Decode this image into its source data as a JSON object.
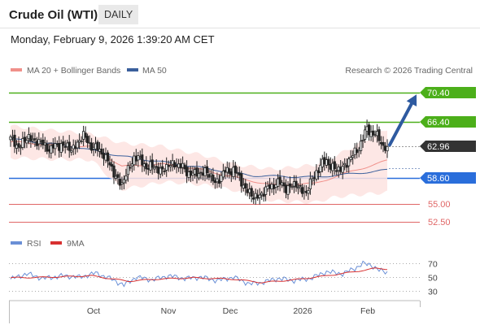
{
  "header": {
    "title": "Crude Oil (WTI)",
    "timeframe": "DAILY",
    "datetime": "Monday, February 9, 2026 1:39:20 AM CET"
  },
  "legend": {
    "ma20_label": "MA 20 + Bollinger Bands",
    "ma50_label": "MA 50",
    "credit": "Research © 2026 Trading Central",
    "ma20_color": "#f0908a",
    "ma50_color": "#3a5f9c",
    "band_fill": "#fde3e1"
  },
  "levels": [
    {
      "label": "70.40",
      "value": 70.4,
      "color": "#4caf1a",
      "style": "tag"
    },
    {
      "label": "66.40",
      "value": 66.4,
      "color": "#4caf1a",
      "style": "tag"
    },
    {
      "label": "62.96",
      "value": 62.96,
      "color": "#333333",
      "style": "tag-current"
    },
    {
      "label": "58.60",
      "value": 58.6,
      "color": "#2a6edb",
      "style": "tag"
    },
    {
      "label": "55.00",
      "value": 55.0,
      "color": "#e06666",
      "style": "text"
    },
    {
      "label": "52.50",
      "value": 52.5,
      "color": "#e06666",
      "style": "text"
    }
  ],
  "x_axis": {
    "ticks": [
      "Oct",
      "Nov",
      "Dec",
      "2026",
      "Feb"
    ]
  },
  "rsi_panel": {
    "rsi_label": "RSI",
    "ma9_label": "9MA",
    "rsi_color": "#6a8fd6",
    "ma9_color": "#d83030",
    "levels": [
      70,
      50,
      30
    ],
    "level_labels": [
      "70",
      "50",
      "30"
    ]
  },
  "chart_data": {
    "type": "candlestick",
    "title": "Crude Oil (WTI)",
    "timeframe": "DAILY",
    "ylim": [
      51.5,
      72.0
    ],
    "x_ticks": [
      "Oct",
      "Nov",
      "Dec",
      "2026",
      "Feb"
    ],
    "close_key": [
      {
        "t": 0,
        "v": 63.9
      },
      {
        "t": 4,
        "v": 63.0
      },
      {
        "t": 9,
        "v": 64.2
      },
      {
        "t": 15,
        "v": 63.4
      },
      {
        "t": 20,
        "v": 62.6
      },
      {
        "t": 25,
        "v": 63.3
      },
      {
        "t": 30,
        "v": 62.5
      },
      {
        "t": 36,
        "v": 64.4
      },
      {
        "t": 41,
        "v": 62.8
      },
      {
        "t": 46,
        "v": 62.0
      },
      {
        "t": 51,
        "v": 59.2
      },
      {
        "t": 55,
        "v": 57.7
      },
      {
        "t": 61,
        "v": 61.6
      },
      {
        "t": 67,
        "v": 60.3
      },
      {
        "t": 75,
        "v": 59.7
      },
      {
        "t": 81,
        "v": 60.7
      },
      {
        "t": 86,
        "v": 59.7
      },
      {
        "t": 91,
        "v": 59.0
      },
      {
        "t": 96,
        "v": 59.6
      },
      {
        "t": 101,
        "v": 58.0
      },
      {
        "t": 106,
        "v": 59.4
      },
      {
        "t": 110,
        "v": 59.8
      },
      {
        "t": 116,
        "v": 57.2
      },
      {
        "t": 120,
        "v": 55.8
      },
      {
        "t": 125,
        "v": 56.6
      },
      {
        "t": 131,
        "v": 58.0
      },
      {
        "t": 136,
        "v": 57.3
      },
      {
        "t": 141,
        "v": 57.6
      },
      {
        "t": 146,
        "v": 56.5
      },
      {
        "t": 151,
        "v": 59.6
      },
      {
        "t": 156,
        "v": 61.0
      },
      {
        "t": 161,
        "v": 59.5
      },
      {
        "t": 166,
        "v": 60.6
      },
      {
        "t": 171,
        "v": 62.5
      },
      {
        "t": 176,
        "v": 65.2
      },
      {
        "t": 180,
        "v": 64.8
      },
      {
        "t": 184,
        "v": 62.9
      },
      {
        "t": 186,
        "v": 62.96
      }
    ],
    "ma20_key": [
      {
        "t": 0,
        "v": 63.6
      },
      {
        "t": 20,
        "v": 63.2
      },
      {
        "t": 40,
        "v": 62.9
      },
      {
        "t": 55,
        "v": 60.2
      },
      {
        "t": 75,
        "v": 60.5
      },
      {
        "t": 95,
        "v": 59.7
      },
      {
        "t": 115,
        "v": 58.4
      },
      {
        "t": 130,
        "v": 57.6
      },
      {
        "t": 150,
        "v": 57.8
      },
      {
        "t": 165,
        "v": 59.2
      },
      {
        "t": 186,
        "v": 61.0
      }
    ],
    "ma50_key": [
      {
        "t": 0,
        "v": 64.0
      },
      {
        "t": 30,
        "v": 63.0
      },
      {
        "t": 55,
        "v": 61.6
      },
      {
        "t": 90,
        "v": 60.2
      },
      {
        "t": 120,
        "v": 58.9
      },
      {
        "t": 150,
        "v": 58.7
      },
      {
        "t": 170,
        "v": 59.2
      },
      {
        "t": 186,
        "v": 59.7
      }
    ],
    "bb_width_key": [
      {
        "t": 0,
        "v": 2.2
      },
      {
        "t": 40,
        "v": 1.8
      },
      {
        "t": 55,
        "v": 3.2
      },
      {
        "t": 80,
        "v": 2.3
      },
      {
        "t": 110,
        "v": 1.8
      },
      {
        "t": 130,
        "v": 2.2
      },
      {
        "t": 160,
        "v": 2.8
      },
      {
        "t": 186,
        "v": 4.4
      }
    ],
    "projection": {
      "from": 62.96,
      "to": 70.4
    },
    "rsi": {
      "ylim": [
        20,
        85
      ],
      "levels": [
        70,
        50,
        30
      ],
      "rsi_key": [
        {
          "t": 0,
          "v": 47
        },
        {
          "t": 8,
          "v": 55
        },
        {
          "t": 16,
          "v": 48
        },
        {
          "t": 26,
          "v": 52
        },
        {
          "t": 34,
          "v": 50
        },
        {
          "t": 42,
          "v": 56
        },
        {
          "t": 50,
          "v": 47
        },
        {
          "t": 56,
          "v": 38
        },
        {
          "t": 62,
          "v": 50
        },
        {
          "t": 70,
          "v": 46
        },
        {
          "t": 78,
          "v": 52
        },
        {
          "t": 86,
          "v": 48
        },
        {
          "t": 94,
          "v": 50
        },
        {
          "t": 102,
          "v": 45
        },
        {
          "t": 110,
          "v": 50
        },
        {
          "t": 118,
          "v": 40
        },
        {
          "t": 124,
          "v": 42
        },
        {
          "t": 132,
          "v": 48
        },
        {
          "t": 140,
          "v": 45
        },
        {
          "t": 148,
          "v": 48
        },
        {
          "t": 156,
          "v": 58
        },
        {
          "t": 164,
          "v": 55
        },
        {
          "t": 170,
          "v": 63
        },
        {
          "t": 174,
          "v": 70
        },
        {
          "t": 178,
          "v": 68
        },
        {
          "t": 182,
          "v": 60
        },
        {
          "t": 186,
          "v": 57
        }
      ],
      "ma9_key": [
        {
          "t": 0,
          "v": 49
        },
        {
          "t": 20,
          "v": 50
        },
        {
          "t": 40,
          "v": 52
        },
        {
          "t": 58,
          "v": 44
        },
        {
          "t": 72,
          "v": 47
        },
        {
          "t": 90,
          "v": 49
        },
        {
          "t": 110,
          "v": 47
        },
        {
          "t": 124,
          "v": 42
        },
        {
          "t": 140,
          "v": 46
        },
        {
          "t": 156,
          "v": 52
        },
        {
          "t": 170,
          "v": 58
        },
        {
          "t": 180,
          "v": 63
        },
        {
          "t": 186,
          "v": 62
        }
      ]
    }
  }
}
